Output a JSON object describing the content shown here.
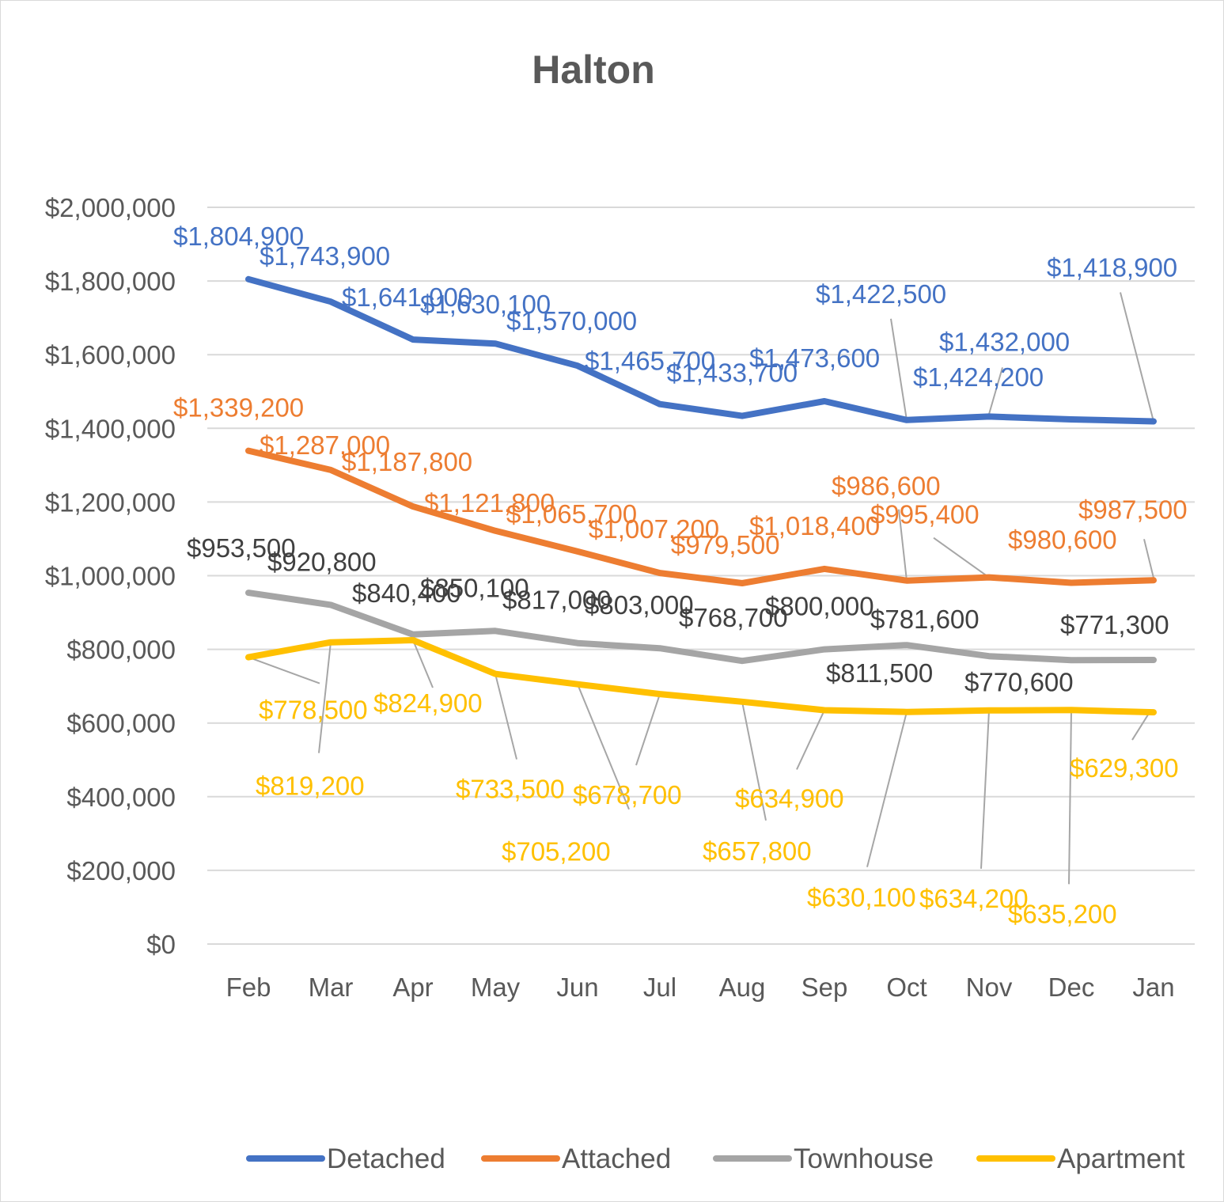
{
  "chart_data": {
    "type": "line",
    "title": "Halton",
    "categories": [
      "Feb",
      "Mar",
      "Apr",
      "May",
      "Jun",
      "Jul",
      "Aug",
      "Sep",
      "Oct",
      "Nov",
      "Dec",
      "Jan"
    ],
    "ylim": [
      0,
      2000000
    ],
    "yticks": [
      0,
      200000,
      400000,
      600000,
      800000,
      1000000,
      1200000,
      1400000,
      1600000,
      1800000,
      2000000
    ],
    "ytick_labels": [
      "$0",
      "$200,000",
      "$400,000",
      "$600,000",
      "$800,000",
      "$1,000,000",
      "$1,200,000",
      "$1,400,000",
      "$1,600,000",
      "$1,800,000",
      "$2,000,000"
    ],
    "grid": true,
    "legend_position": "bottom",
    "series": [
      {
        "name": "Detached",
        "color": "#4472C4",
        "values": [
          1804900,
          1743900,
          1641000,
          1630100,
          1570000,
          1465700,
          1433700,
          1473600,
          1422500,
          1432000,
          1424200,
          1418900
        ],
        "labels": [
          "$1,804,900",
          "$1,743,900",
          "$1,641,000",
          "$1,630,100",
          "$1,570,000",
          "$1,465,700",
          "$1,433,700",
          "$1,473,600",
          "$1,422,500",
          "$1,432,000",
          "$1,424,200",
          "$1,418,900"
        ]
      },
      {
        "name": "Attached",
        "color": "#ED7D31",
        "values": [
          1339200,
          1287000,
          1187800,
          1121800,
          1065700,
          1007200,
          979500,
          1018400,
          986600,
          995400,
          980600,
          987500
        ],
        "labels": [
          "$1,339,200",
          "$1,287,000",
          "$1,187,800",
          "$1,121,800",
          "$1,065,700",
          "$1,007,200",
          "$979,500",
          "$1,018,400",
          "$986,600",
          "$995,400",
          "$980,600",
          "$987,500"
        ]
      },
      {
        "name": "Townhouse",
        "color": "#A5A5A5",
        "label_color": "#404040",
        "values": [
          953500,
          920800,
          840400,
          850100,
          817000,
          803000,
          768700,
          800000,
          811500,
          781600,
          770600,
          771300
        ],
        "labels": [
          "$953,500",
          "$920,800",
          "$840,400",
          "$850,100",
          "$817,000",
          "$803,000",
          "$768,700",
          "$800,000",
          "$811,500",
          "$781,600",
          "$770,600",
          "$771,300"
        ]
      },
      {
        "name": "Apartment",
        "color": "#FFC000",
        "values": [
          778500,
          819200,
          824900,
          733500,
          705200,
          678700,
          657800,
          634900,
          630100,
          634200,
          635200,
          629300
        ],
        "labels": [
          "$778,500",
          "$819,200",
          "$824,900",
          "$733,500",
          "$705,200",
          "$678,700",
          "$657,800",
          "$634,900",
          "$630,100",
          "$634,200",
          "$635,200",
          "$629,300"
        ]
      }
    ]
  }
}
